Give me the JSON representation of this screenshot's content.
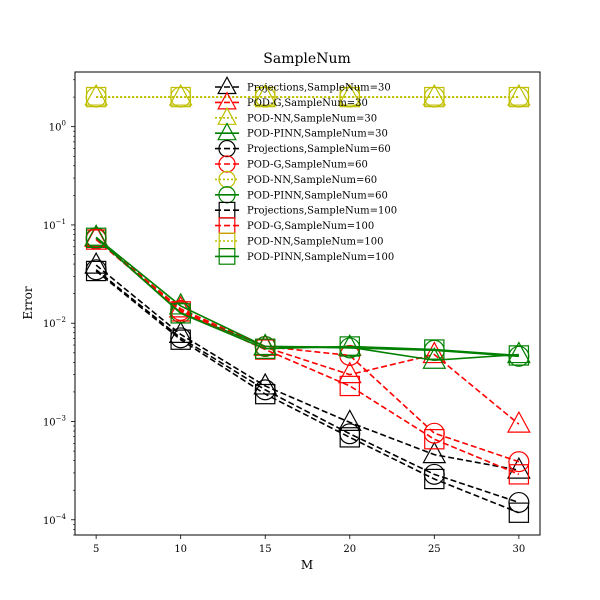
{
  "chart_data": {
    "type": "line",
    "title": "SampleNum",
    "xlabel": "M",
    "ylabel": "Error",
    "yscale": "log",
    "xlim": [
      3.75,
      31.25
    ],
    "ylim": [
      7e-05,
      3.6
    ],
    "grid": false,
    "legend_position": "top-center",
    "x": [
      5,
      10,
      15,
      20,
      25,
      30
    ],
    "x_tick_labels": [
      "5",
      "10",
      "15",
      "20",
      "25",
      "30"
    ],
    "y_ticks": [
      {
        "value": 0.0001,
        "base": "10",
        "exp": "−4"
      },
      {
        "value": 0.001,
        "base": "10",
        "exp": "−3"
      },
      {
        "value": 0.01,
        "base": "10",
        "exp": "−2"
      },
      {
        "value": 0.1,
        "base": "10",
        "exp": "−1"
      },
      {
        "value": 1,
        "base": "10",
        "exp": "0"
      }
    ],
    "series": [
      {
        "name": "Projections,SampleNum=30",
        "color": "#000000",
        "marker": "triangle",
        "linestyle": "dashed",
        "values": [
          0.039,
          0.0077,
          0.0023,
          0.00098,
          0.00046,
          0.00032
        ]
      },
      {
        "name": "POD-G,SampleNum=30",
        "color": "#ff0000",
        "marker": "triangle",
        "linestyle": "dashed",
        "values": [
          0.073,
          0.014,
          0.0057,
          0.003,
          0.0048,
          0.00094
        ]
      },
      {
        "name": "POD-NN,SampleNum=30",
        "color": "#bfbf00",
        "marker": "triangle",
        "linestyle": "dotted",
        "values": [
          2.0,
          2.0,
          2.0,
          2.0,
          2.0,
          2.0
        ]
      },
      {
        "name": "POD-PINN,SampleNum=30",
        "color": "#008000",
        "marker": "triangle",
        "linestyle": "solid",
        "values": [
          0.075,
          0.015,
          0.0058,
          0.0057,
          0.0042,
          0.0048
        ]
      },
      {
        "name": "Projections,SampleNum=60",
        "color": "#000000",
        "marker": "circle",
        "linestyle": "dashed",
        "values": [
          0.035,
          0.0071,
          0.0021,
          0.00075,
          0.00029,
          0.00015
        ]
      },
      {
        "name": "POD-G,SampleNum=60",
        "color": "#ff0000",
        "marker": "circle",
        "linestyle": "dashed",
        "values": [
          0.072,
          0.0135,
          0.0058,
          0.0047,
          0.00076,
          0.00039
        ]
      },
      {
        "name": "POD-NN,SampleNum=60",
        "color": "#bfbf00",
        "marker": "circle",
        "linestyle": "dotted",
        "values": [
          2.0,
          2.0,
          2.0,
          2.0,
          2.0,
          2.0
        ]
      },
      {
        "name": "POD-PINN,SampleNum=60",
        "color": "#008000",
        "marker": "circle",
        "linestyle": "solid",
        "values": [
          0.074,
          0.0128,
          0.0058,
          0.0056,
          0.0053,
          0.0046
        ]
      },
      {
        "name": "Projections,SampleNum=100",
        "color": "#000000",
        "marker": "square",
        "linestyle": "dashed",
        "values": [
          0.034,
          0.0068,
          0.0019,
          0.00069,
          0.00026,
          0.000118
        ]
      },
      {
        "name": "POD-G,SampleNum=100",
        "color": "#ff0000",
        "marker": "square",
        "linestyle": "dashed",
        "values": [
          0.071,
          0.0132,
          0.0054,
          0.0023,
          0.00066,
          0.00029
        ]
      },
      {
        "name": "POD-NN,SampleNum=100",
        "color": "#bfbf00",
        "marker": "square",
        "linestyle": "dotted",
        "values": [
          2.0,
          2.0,
          2.0,
          2.0,
          2.0,
          2.0
        ]
      },
      {
        "name": "POD-PINN,SampleNum=100",
        "color": "#008000",
        "marker": "square",
        "linestyle": "solid",
        "values": [
          0.074,
          0.0126,
          0.0055,
          0.0058,
          0.0054,
          0.0047
        ]
      }
    ]
  }
}
